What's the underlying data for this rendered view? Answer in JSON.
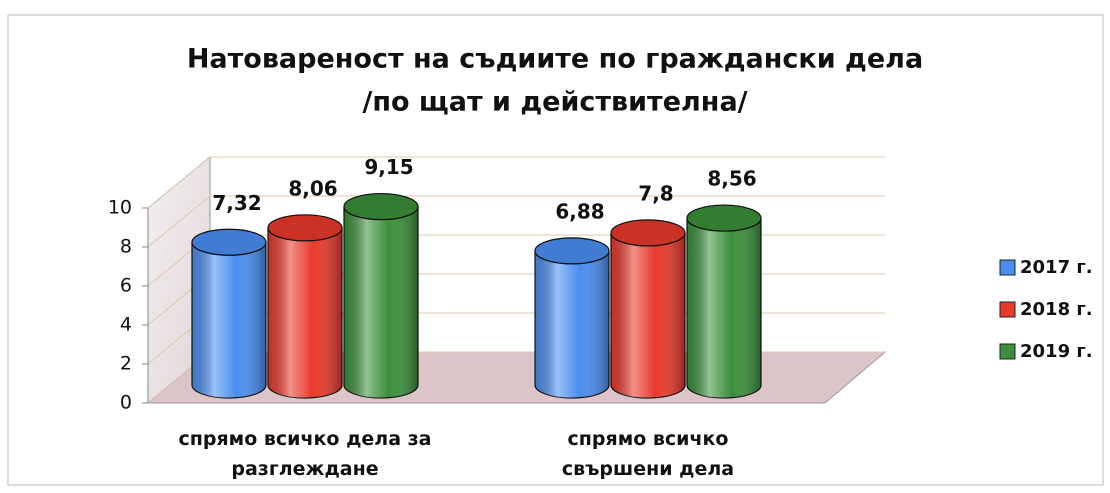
{
  "chart_data": {
    "type": "bar3d",
    "title": [
      "Натовареност на съдиите по граждански дела",
      "/по щат и действителна/"
    ],
    "categories": [
      "спрямо всичко дела за разглеждане",
      "спрямо всичко свършени дела"
    ],
    "series": [
      {
        "name": "2017 г.",
        "color": "#4a8ef0",
        "values": [
          7.32,
          6.88
        ],
        "value_labels": [
          "7,32",
          "6,88"
        ]
      },
      {
        "name": "2018 г.",
        "color": "#e8392c",
        "values": [
          8.06,
          7.8
        ],
        "value_labels": [
          "8,06",
          "7,8"
        ]
      },
      {
        "name": "2019 г.",
        "color": "#3b8f3b",
        "values": [
          9.15,
          8.56
        ],
        "value_labels": [
          "9,15",
          "8,56"
        ]
      }
    ],
    "ylim": [
      0,
      10
    ],
    "yticks": [
      0,
      2,
      4,
      6,
      8,
      10
    ],
    "grid": true,
    "legend": "right"
  }
}
